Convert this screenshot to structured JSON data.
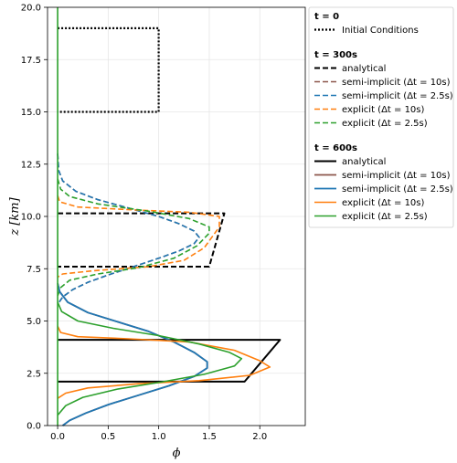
{
  "chart_data": {
    "type": "line",
    "xlabel": "ϕ",
    "ylabel": "z [km]",
    "xlim": [
      -0.1,
      2.45
    ],
    "ylim": [
      0,
      20
    ],
    "grid": true,
    "x_ticks": [
      "0.0",
      "0.5",
      "1.0",
      "1.5",
      "2.0"
    ],
    "x_tick_values": [
      0,
      0.5,
      1.0,
      1.5,
      2.0
    ],
    "y_ticks": [
      "0.0",
      "2.5",
      "5.0",
      "7.5",
      "10.0",
      "12.5",
      "15.0",
      "17.5",
      "20.0"
    ],
    "y_tick_values": [
      0,
      2.5,
      5,
      7.5,
      10,
      12.5,
      15,
      17.5,
      20
    ],
    "legend_placement": "outside right",
    "legend_groups": [
      {
        "title": "t = 0",
        "items": [
          {
            "label": "Initial Conditions",
            "color": "#000000",
            "style": "dotted",
            "width": 2.2
          }
        ]
      },
      {
        "title": "t = 300s",
        "items": [
          {
            "label": "analytical",
            "color": "#000000",
            "style": "dashed",
            "width": 2
          },
          {
            "label": "semi-implicit (Δt = 10s)",
            "color": "#8c564b",
            "style": "dashed",
            "width": 1.6
          },
          {
            "label": "semi-implicit (Δt = 2.5s)",
            "color": "#1f77b4",
            "style": "dashed",
            "width": 1.6
          },
          {
            "label": "explicit (Δt = 10s)",
            "color": "#ff7f0e",
            "style": "dashed",
            "width": 1.6
          },
          {
            "label": "explicit (Δt = 2.5s)",
            "color": "#2ca02c",
            "style": "dashed",
            "width": 1.6
          }
        ]
      },
      {
        "title": "t = 600s",
        "items": [
          {
            "label": "analytical",
            "color": "#000000",
            "style": "solid",
            "width": 2
          },
          {
            "label": "semi-implicit (Δt = 10s)",
            "color": "#8c564b",
            "style": "solid",
            "width": 1.8
          },
          {
            "label": "semi-implicit (Δt = 2.5s)",
            "color": "#1f77b4",
            "style": "solid",
            "width": 1.8
          },
          {
            "label": "explicit (Δt = 10s)",
            "color": "#ff7f0e",
            "style": "solid",
            "width": 1.6
          },
          {
            "label": "explicit (Δt = 2.5s)",
            "color": "#2ca02c",
            "style": "solid",
            "width": 1.6
          }
        ]
      }
    ],
    "series": [
      {
        "group": "t = 0",
        "name": "Initial Conditions",
        "color": "#000000",
        "style": "dotted",
        "width": 2.2,
        "points": [
          [
            0,
            19
          ],
          [
            1.0,
            19
          ],
          [
            1.0,
            15
          ],
          [
            0,
            15
          ]
        ]
      },
      {
        "group": "t = 300s",
        "name": "analytical",
        "color": "#000000",
        "style": "dashed",
        "width": 2,
        "points": [
          [
            0,
            10.15
          ],
          [
            1.65,
            10.15
          ],
          [
            1.5,
            7.6
          ],
          [
            0,
            7.6
          ]
        ]
      },
      {
        "group": "t = 300s",
        "name": "semi-implicit (Δt = 10s)",
        "color": "#8c564b",
        "style": "dashed",
        "width": 1.6,
        "points": [
          [
            0,
            13
          ],
          [
            0.01,
            12.2
          ],
          [
            0.05,
            11.7
          ],
          [
            0.18,
            11.2
          ],
          [
            0.4,
            10.8
          ],
          [
            0.7,
            10.4
          ],
          [
            1.0,
            10.0
          ],
          [
            1.2,
            9.65
          ],
          [
            1.35,
            9.3
          ],
          [
            1.4,
            9.0
          ],
          [
            1.35,
            8.7
          ],
          [
            1.2,
            8.35
          ],
          [
            1.0,
            8.0
          ],
          [
            0.75,
            7.6
          ],
          [
            0.5,
            7.2
          ],
          [
            0.3,
            6.85
          ],
          [
            0.15,
            6.5
          ],
          [
            0.05,
            6.15
          ],
          [
            0.0,
            5.8
          ]
        ]
      },
      {
        "group": "t = 300s",
        "name": "semi-implicit (Δt = 2.5s)",
        "color": "#1f77b4",
        "style": "dashed",
        "width": 1.6,
        "points": [
          [
            0,
            13
          ],
          [
            0.01,
            12.2
          ],
          [
            0.05,
            11.7
          ],
          [
            0.18,
            11.2
          ],
          [
            0.4,
            10.8
          ],
          [
            0.7,
            10.4
          ],
          [
            1.0,
            10.0
          ],
          [
            1.2,
            9.65
          ],
          [
            1.35,
            9.3
          ],
          [
            1.4,
            9.0
          ],
          [
            1.35,
            8.7
          ],
          [
            1.2,
            8.35
          ],
          [
            1.0,
            8.0
          ],
          [
            0.75,
            7.6
          ],
          [
            0.5,
            7.2
          ],
          [
            0.3,
            6.85
          ],
          [
            0.15,
            6.5
          ],
          [
            0.05,
            6.15
          ],
          [
            0.0,
            5.8
          ]
        ]
      },
      {
        "group": "t = 300s",
        "name": "explicit (Δt = 10s)",
        "color": "#ff7f0e",
        "style": "dashed",
        "width": 1.6,
        "points": [
          [
            0,
            11.0
          ],
          [
            0.02,
            10.7
          ],
          [
            0.2,
            10.45
          ],
          [
            0.8,
            10.3
          ],
          [
            1.3,
            10.2
          ],
          [
            1.6,
            10.0
          ],
          [
            1.6,
            9.5
          ],
          [
            1.45,
            8.5
          ],
          [
            1.25,
            7.9
          ],
          [
            0.9,
            7.6
          ],
          [
            0.35,
            7.4
          ],
          [
            0.05,
            7.25
          ],
          [
            0.0,
            7.1
          ]
        ]
      },
      {
        "group": "t = 300s",
        "name": "explicit (Δt = 2.5s)",
        "color": "#2ca02c",
        "style": "dashed",
        "width": 1.6,
        "points": [
          [
            0,
            11.8
          ],
          [
            0.03,
            11.3
          ],
          [
            0.12,
            10.95
          ],
          [
            0.4,
            10.6
          ],
          [
            0.9,
            10.25
          ],
          [
            1.3,
            9.9
          ],
          [
            1.5,
            9.5
          ],
          [
            1.5,
            9.2
          ],
          [
            1.38,
            8.6
          ],
          [
            1.15,
            8.0
          ],
          [
            0.8,
            7.55
          ],
          [
            0.4,
            7.25
          ],
          [
            0.12,
            6.95
          ],
          [
            0.03,
            6.6
          ],
          [
            0.0,
            6.2
          ]
        ]
      },
      {
        "group": "t = 600s",
        "name": "analytical",
        "color": "#000000",
        "style": "solid",
        "width": 2,
        "points": [
          [
            0,
            4.1
          ],
          [
            2.2,
            4.1
          ],
          [
            1.85,
            2.1
          ],
          [
            0,
            2.1
          ]
        ]
      },
      {
        "group": "t = 600s",
        "name": "semi-implicit (Δt = 10s)",
        "color": "#8c564b",
        "style": "solid",
        "width": 1.8,
        "points": [
          [
            0,
            6.8
          ],
          [
            0.02,
            6.4
          ],
          [
            0.1,
            5.9
          ],
          [
            0.3,
            5.4
          ],
          [
            0.6,
            4.95
          ],
          [
            0.9,
            4.5
          ],
          [
            1.15,
            4.0
          ],
          [
            1.35,
            3.5
          ],
          [
            1.48,
            3.05
          ],
          [
            1.48,
            2.75
          ],
          [
            1.35,
            2.35
          ],
          [
            1.1,
            1.9
          ],
          [
            0.8,
            1.45
          ],
          [
            0.5,
            1.0
          ],
          [
            0.28,
            0.6
          ],
          [
            0.12,
            0.25
          ],
          [
            0.05,
            0
          ]
        ]
      },
      {
        "group": "t = 600s",
        "name": "semi-implicit (Δt = 2.5s)",
        "color": "#1f77b4",
        "style": "solid",
        "width": 1.8,
        "points": [
          [
            0,
            6.8
          ],
          [
            0.02,
            6.4
          ],
          [
            0.1,
            5.9
          ],
          [
            0.3,
            5.4
          ],
          [
            0.6,
            4.95
          ],
          [
            0.9,
            4.5
          ],
          [
            1.15,
            4.0
          ],
          [
            1.35,
            3.5
          ],
          [
            1.48,
            3.05
          ],
          [
            1.48,
            2.75
          ],
          [
            1.35,
            2.35
          ],
          [
            1.1,
            1.9
          ],
          [
            0.8,
            1.45
          ],
          [
            0.5,
            1.0
          ],
          [
            0.28,
            0.6
          ],
          [
            0.12,
            0.25
          ],
          [
            0.05,
            0
          ]
        ]
      },
      {
        "group": "t = 600s",
        "name": "explicit (Δt = 10s)",
        "color": "#ff7f0e",
        "style": "solid",
        "width": 1.6,
        "points": [
          [
            0,
            4.75
          ],
          [
            0.03,
            4.45
          ],
          [
            0.2,
            4.25
          ],
          [
            0.7,
            4.15
          ],
          [
            1.3,
            4.0
          ],
          [
            1.75,
            3.6
          ],
          [
            2.0,
            3.1
          ],
          [
            2.1,
            2.8
          ],
          [
            1.9,
            2.4
          ],
          [
            1.4,
            2.15
          ],
          [
            0.8,
            2.0
          ],
          [
            0.3,
            1.8
          ],
          [
            0.08,
            1.55
          ],
          [
            0.0,
            1.3
          ]
        ]
      },
      {
        "group": "t = 600s",
        "name": "explicit (Δt = 2.5s)",
        "color": "#2ca02c",
        "style": "solid",
        "width": 1.6,
        "points": [
          [
            0,
            5.9
          ],
          [
            0.04,
            5.45
          ],
          [
            0.2,
            5.0
          ],
          [
            0.55,
            4.65
          ],
          [
            1.0,
            4.3
          ],
          [
            1.4,
            3.9
          ],
          [
            1.7,
            3.5
          ],
          [
            1.82,
            3.2
          ],
          [
            1.75,
            2.85
          ],
          [
            1.45,
            2.45
          ],
          [
            1.05,
            2.1
          ],
          [
            0.6,
            1.75
          ],
          [
            0.25,
            1.35
          ],
          [
            0.08,
            0.95
          ],
          [
            0.0,
            0.5
          ]
        ]
      }
    ]
  }
}
